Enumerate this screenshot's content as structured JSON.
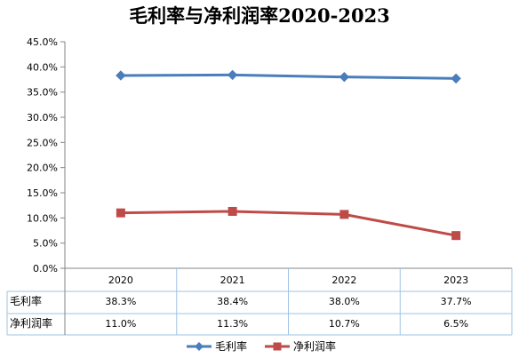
{
  "chart_data": {
    "type": "line",
    "title": "毛利率与净利润率2020-2023",
    "categories": [
      "2020",
      "2021",
      "2022",
      "2023"
    ],
    "series": [
      {
        "name": "毛利率",
        "values": [
          38.3,
          38.4,
          38.0,
          37.7
        ],
        "labels": [
          "38.3%",
          "38.4%",
          "38.0%",
          "37.7%"
        ],
        "color": "#4a7ebb",
        "marker": "diamond"
      },
      {
        "name": "净利润率",
        "values": [
          11.0,
          11.3,
          10.7,
          6.5
        ],
        "labels": [
          "11.0%",
          "11.3%",
          "10.7%",
          "6.5%"
        ],
        "color": "#be4b48",
        "marker": "square"
      }
    ],
    "ylim": [
      0,
      45
    ],
    "yticks": [
      "0.0%",
      "5.0%",
      "10.0%",
      "15.0%",
      "20.0%",
      "25.0%",
      "30.0%",
      "35.0%",
      "40.0%",
      "45.0%"
    ],
    "xlabel": "",
    "ylabel": "",
    "data_table": true,
    "legend": "bottom",
    "grid": false
  }
}
